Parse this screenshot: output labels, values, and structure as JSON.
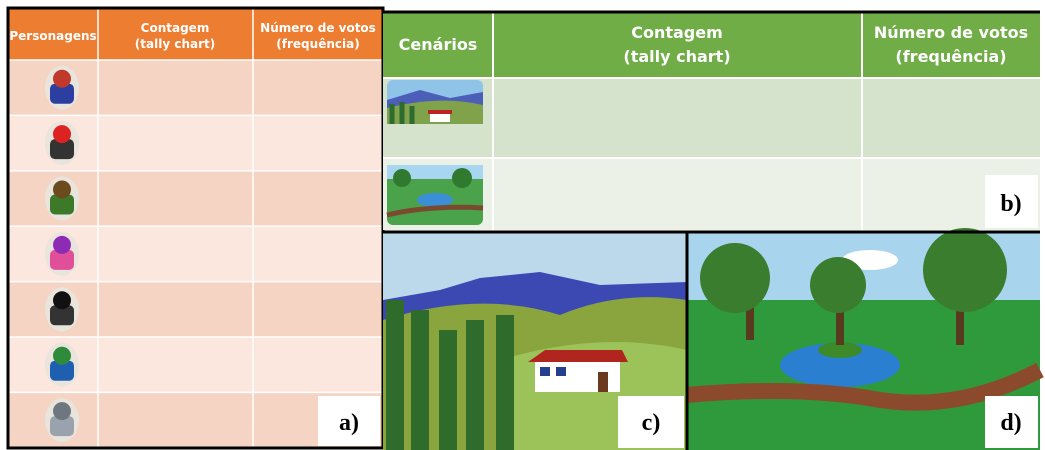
{
  "table_a": {
    "headers": [
      [
        "Personagens"
      ],
      [
        "Contagem",
        "(tally chart)"
      ],
      [
        "Número de votos",
        "(frequência)"
      ]
    ],
    "label": "a)"
  },
  "table_b": {
    "headers": [
      [
        "Cenários"
      ],
      [
        "Contagem",
        "(tally chart)"
      ],
      [
        "Número de votos",
        "(frequência)"
      ]
    ],
    "label": "b)"
  },
  "image_c": {
    "label": "c)"
  },
  "image_d": {
    "label": "d)"
  }
}
